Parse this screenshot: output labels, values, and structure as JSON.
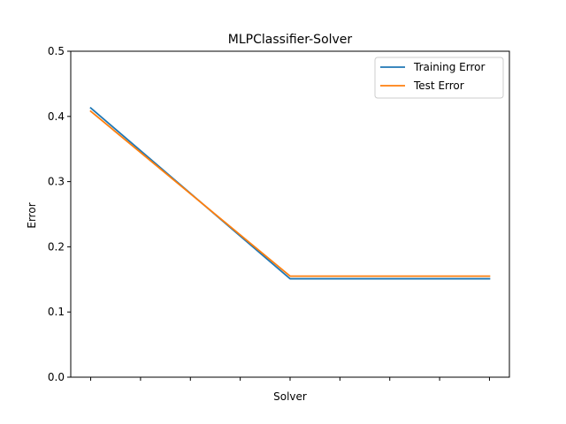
{
  "chart_data": {
    "type": "line",
    "title": "MLPClassifier-Solver",
    "xlabel": "Solver",
    "ylabel": "Error",
    "ylim": [
      0,
      0.5
    ],
    "yticks": [
      "0.0",
      "0.1",
      "0.2",
      "0.3",
      "0.4",
      "0.5"
    ],
    "x": [
      0,
      1,
      2
    ],
    "xlim": [
      -0.1,
      2.1
    ],
    "xticks": [
      0,
      0.25,
      0.5,
      0.75,
      1,
      1.25,
      1.5,
      1.75,
      2
    ],
    "grid": false,
    "legend_position": "top-right",
    "series": [
      {
        "name": "Training Error",
        "values": [
          0.413,
          0.151,
          0.151
        ],
        "color": "#1f77b4"
      },
      {
        "name": "Test Error",
        "values": [
          0.408,
          0.155,
          0.155
        ],
        "color": "#ff7f0e"
      }
    ]
  }
}
